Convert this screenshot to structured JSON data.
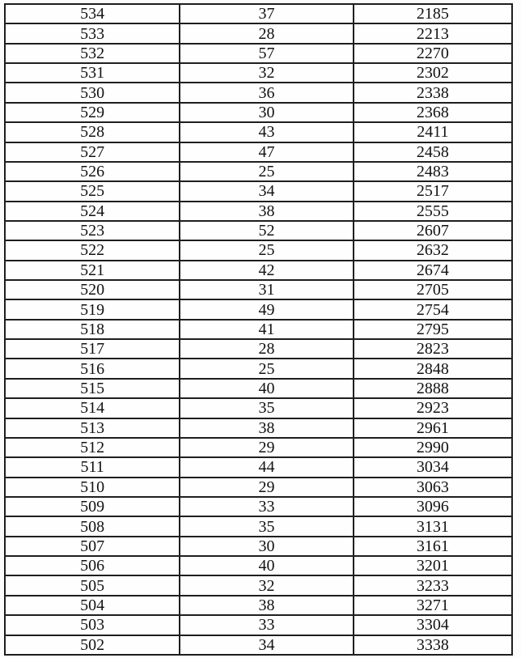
{
  "colors": {
    "text": "#121212",
    "border": "#1e1e1e",
    "page_bg": "#fcfcfc",
    "table_bg": "#fefefe"
  },
  "table": {
    "rows": [
      [
        "534",
        "37",
        "2185"
      ],
      [
        "533",
        "28",
        "2213"
      ],
      [
        "532",
        "57",
        "2270"
      ],
      [
        "531",
        "32",
        "2302"
      ],
      [
        "530",
        "36",
        "2338"
      ],
      [
        "529",
        "30",
        "2368"
      ],
      [
        "528",
        "43",
        "2411"
      ],
      [
        "527",
        "47",
        "2458"
      ],
      [
        "526",
        "25",
        "2483"
      ],
      [
        "525",
        "34",
        "2517"
      ],
      [
        "524",
        "38",
        "2555"
      ],
      [
        "523",
        "52",
        "2607"
      ],
      [
        "522",
        "25",
        "2632"
      ],
      [
        "521",
        "42",
        "2674"
      ],
      [
        "520",
        "31",
        "2705"
      ],
      [
        "519",
        "49",
        "2754"
      ],
      [
        "518",
        "41",
        "2795"
      ],
      [
        "517",
        "28",
        "2823"
      ],
      [
        "516",
        "25",
        "2848"
      ],
      [
        "515",
        "40",
        "2888"
      ],
      [
        "514",
        "35",
        "2923"
      ],
      [
        "513",
        "38",
        "2961"
      ],
      [
        "512",
        "29",
        "2990"
      ],
      [
        "511",
        "44",
        "3034"
      ],
      [
        "510",
        "29",
        "3063"
      ],
      [
        "509",
        "33",
        "3096"
      ],
      [
        "508",
        "35",
        "3131"
      ],
      [
        "507",
        "30",
        "3161"
      ],
      [
        "506",
        "40",
        "3201"
      ],
      [
        "505",
        "32",
        "3233"
      ],
      [
        "504",
        "38",
        "3271"
      ],
      [
        "503",
        "33",
        "3304"
      ],
      [
        "502",
        "34",
        "3338"
      ]
    ]
  }
}
